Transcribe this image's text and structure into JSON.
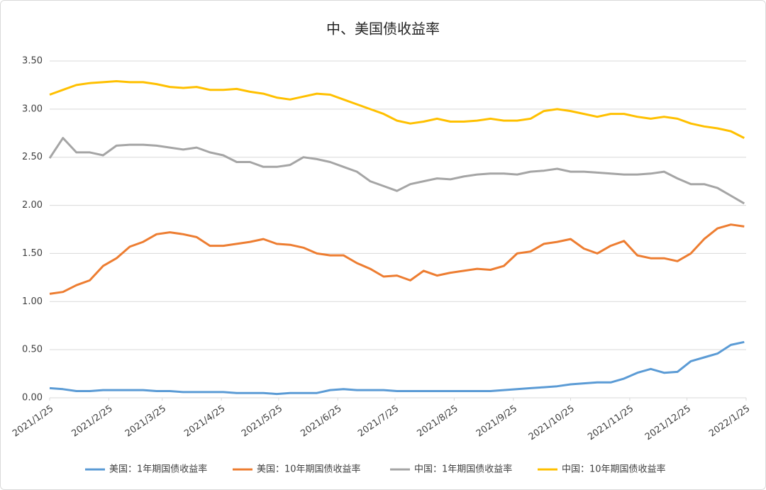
{
  "chart_data": {
    "type": "line",
    "title": "中、美国债收益率",
    "x": [
      "2021/1/25",
      "2021/2/1",
      "2021/2/8",
      "2021/2/15",
      "2021/2/22",
      "2021/3/1",
      "2021/3/8",
      "2021/3/15",
      "2021/3/22",
      "2021/3/29",
      "2021/4/5",
      "2021/4/12",
      "2021/4/19",
      "2021/4/26",
      "2021/5/3",
      "2021/5/10",
      "2021/5/17",
      "2021/5/24",
      "2021/5/31",
      "2021/6/7",
      "2021/6/14",
      "2021/6/21",
      "2021/6/28",
      "2021/7/5",
      "2021/7/12",
      "2021/7/19",
      "2021/7/26",
      "2021/8/2",
      "2021/8/9",
      "2021/8/16",
      "2021/8/23",
      "2021/8/30",
      "2021/9/6",
      "2021/9/13",
      "2021/9/20",
      "2021/9/27",
      "2021/10/4",
      "2021/10/11",
      "2021/10/18",
      "2021/10/25",
      "2021/11/1",
      "2021/11/8",
      "2021/11/15",
      "2021/11/22",
      "2021/11/29",
      "2021/12/6",
      "2021/12/13",
      "2021/12/20",
      "2021/12/27",
      "2022/1/3",
      "2022/1/10",
      "2022/1/17",
      "2022/1/24"
    ],
    "series": [
      {
        "name": "美国：1年期国债收益率",
        "color": "#5b9bd5",
        "values": [
          0.1,
          0.09,
          0.07,
          0.07,
          0.08,
          0.08,
          0.08,
          0.08,
          0.07,
          0.07,
          0.06,
          0.06,
          0.06,
          0.06,
          0.05,
          0.05,
          0.05,
          0.04,
          0.05,
          0.05,
          0.05,
          0.08,
          0.09,
          0.08,
          0.08,
          0.08,
          0.07,
          0.07,
          0.07,
          0.07,
          0.07,
          0.07,
          0.07,
          0.07,
          0.08,
          0.09,
          0.1,
          0.11,
          0.12,
          0.14,
          0.15,
          0.16,
          0.16,
          0.2,
          0.26,
          0.3,
          0.26,
          0.27,
          0.38,
          0.42,
          0.46,
          0.55,
          0.58
        ]
      },
      {
        "name": "美国：10年期国债收益率",
        "color": "#ed7d31",
        "values": [
          1.08,
          1.1,
          1.17,
          1.22,
          1.37,
          1.45,
          1.57,
          1.62,
          1.7,
          1.72,
          1.7,
          1.67,
          1.58,
          1.58,
          1.6,
          1.62,
          1.65,
          1.6,
          1.59,
          1.56,
          1.5,
          1.48,
          1.48,
          1.4,
          1.34,
          1.26,
          1.27,
          1.22,
          1.32,
          1.27,
          1.3,
          1.32,
          1.34,
          1.33,
          1.37,
          1.5,
          1.52,
          1.6,
          1.62,
          1.65,
          1.55,
          1.5,
          1.58,
          1.63,
          1.48,
          1.45,
          1.45,
          1.42,
          1.5,
          1.65,
          1.76,
          1.8,
          1.78
        ]
      },
      {
        "name": "中国：1年期国债收益率",
        "color": "#a5a5a5",
        "values": [
          2.49,
          2.7,
          2.55,
          2.55,
          2.52,
          2.62,
          2.63,
          2.63,
          2.62,
          2.6,
          2.58,
          2.6,
          2.55,
          2.52,
          2.45,
          2.45,
          2.4,
          2.4,
          2.42,
          2.5,
          2.48,
          2.45,
          2.4,
          2.35,
          2.25,
          2.2,
          2.15,
          2.22,
          2.25,
          2.28,
          2.27,
          2.3,
          2.32,
          2.33,
          2.33,
          2.32,
          2.35,
          2.36,
          2.38,
          2.35,
          2.35,
          2.34,
          2.33,
          2.32,
          2.32,
          2.33,
          2.35,
          2.28,
          2.22,
          2.22,
          2.18,
          2.1,
          2.02
        ]
      },
      {
        "name": "中国：10年期国债收益率",
        "color": "#ffc000",
        "values": [
          3.15,
          3.2,
          3.25,
          3.27,
          3.28,
          3.29,
          3.28,
          3.28,
          3.26,
          3.23,
          3.22,
          3.23,
          3.2,
          3.2,
          3.21,
          3.18,
          3.16,
          3.12,
          3.1,
          3.13,
          3.16,
          3.15,
          3.1,
          3.05,
          3.0,
          2.95,
          2.88,
          2.85,
          2.87,
          2.9,
          2.87,
          2.87,
          2.88,
          2.9,
          2.88,
          2.88,
          2.9,
          2.98,
          3.0,
          2.98,
          2.95,
          2.92,
          2.95,
          2.95,
          2.92,
          2.9,
          2.92,
          2.9,
          2.85,
          2.82,
          2.8,
          2.77,
          2.7
        ]
      }
    ],
    "xlim": [
      "2021/1/25",
      "2022/1/25"
    ],
    "xticks": [
      "2021/1/25",
      "2021/2/25",
      "2021/3/25",
      "2021/4/25",
      "2021/5/25",
      "2021/6/25",
      "2021/7/25",
      "2021/8/25",
      "2021/9/25",
      "2021/10/25",
      "2021/11/25",
      "2021/12/25",
      "2022/1/25"
    ],
    "ylim": [
      0,
      3.5
    ],
    "yticks": [
      {
        "value": 0,
        "label": "0.00"
      },
      {
        "value": 0.5,
        "label": "0.50"
      },
      {
        "value": 1,
        "label": "1.00"
      },
      {
        "value": 1.5,
        "label": "1.50"
      },
      {
        "value": 2,
        "label": "2.00"
      },
      {
        "value": 2.5,
        "label": "2.50"
      },
      {
        "value": 3,
        "label": "3.00"
      },
      {
        "value": 3.5,
        "label": "3.50"
      }
    ],
    "grid": true,
    "legend": "bottom"
  }
}
